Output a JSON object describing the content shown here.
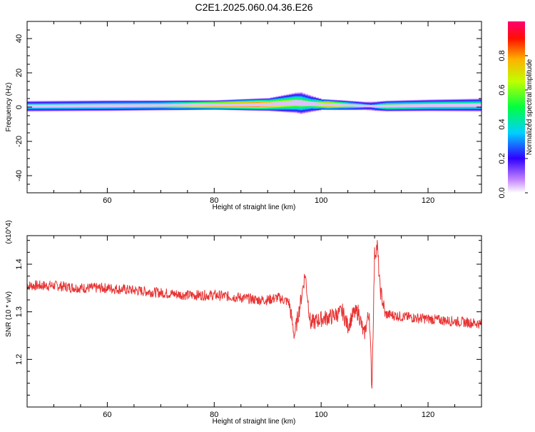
{
  "title": "C2E1.2025.060.04.36.E26",
  "chart_data": [
    {
      "type": "heatmap",
      "xlabel": "Height of straight line (km)",
      "ylabel": "Frequency (Hz)",
      "xlim": [
        45,
        130
      ],
      "ylim": [
        -50,
        50
      ],
      "xticks": [
        60,
        80,
        100,
        120
      ],
      "yticks": [
        -40,
        -20,
        0,
        20,
        40
      ],
      "colorbar": {
        "label": "Normalized spectral amplitude",
        "range": [
          0,
          1
        ],
        "ticks": [
          "0.0",
          "0.2",
          "0.4",
          "0.6",
          "0.8"
        ]
      },
      "band": {
        "center_hz": [
          [
            45,
            0.5
          ],
          [
            60,
            0.8
          ],
          [
            80,
            1.2
          ],
          [
            90,
            1.5
          ],
          [
            95,
            2.5
          ],
          [
            100,
            1.5
          ],
          [
            105,
            1.0
          ],
          [
            110,
            0.5
          ],
          [
            120,
            1.0
          ],
          [
            130,
            1.2
          ]
        ],
        "half_width_hz": [
          [
            45,
            2.5
          ],
          [
            60,
            2.5
          ],
          [
            80,
            2.2
          ],
          [
            90,
            3.0
          ],
          [
            96,
            5.0
          ],
          [
            100,
            2.5
          ],
          [
            108,
            2.0
          ],
          [
            112,
            2.5
          ],
          [
            130,
            3.0
          ]
        ],
        "peak_amplitude": [
          [
            45,
            0.45
          ],
          [
            70,
            0.55
          ],
          [
            80,
            0.9
          ],
          [
            88,
            0.95
          ],
          [
            92,
            0.75
          ],
          [
            98,
            0.55
          ],
          [
            101,
            0.9
          ],
          [
            105,
            0.6
          ],
          [
            109,
            0.3
          ],
          [
            112,
            0.6
          ],
          [
            130,
            0.55
          ]
        ]
      }
    },
    {
      "type": "line",
      "xlabel": "Height of straight line (km)",
      "ylabel": "SNR (10 * v/v)",
      "y_multiplier": "(x10^4)",
      "xlim": [
        45,
        130
      ],
      "ylim": [
        1.1,
        1.46
      ],
      "xticks": [
        60,
        80,
        100,
        120
      ],
      "yticks": [
        1.2,
        1.3,
        1.4
      ],
      "series": [
        {
          "color": "#e83232",
          "x": [
            45,
            50,
            55,
            60,
            65,
            70,
            75,
            80,
            85,
            88,
            90,
            92,
            94,
            95,
            96,
            97,
            98,
            100,
            102,
            104,
            105,
            106,
            107,
            108,
            109,
            109.5,
            110,
            110.5,
            111,
            112,
            115,
            120,
            125,
            130
          ],
          "y": [
            1.355,
            1.355,
            1.35,
            1.35,
            1.345,
            1.34,
            1.335,
            1.335,
            1.33,
            1.325,
            1.325,
            1.33,
            1.32,
            1.25,
            1.31,
            1.38,
            1.275,
            1.285,
            1.29,
            1.3,
            1.27,
            1.295,
            1.3,
            1.25,
            1.3,
            1.14,
            1.42,
            1.44,
            1.35,
            1.295,
            1.29,
            1.285,
            1.28,
            1.275
          ]
        }
      ]
    }
  ]
}
